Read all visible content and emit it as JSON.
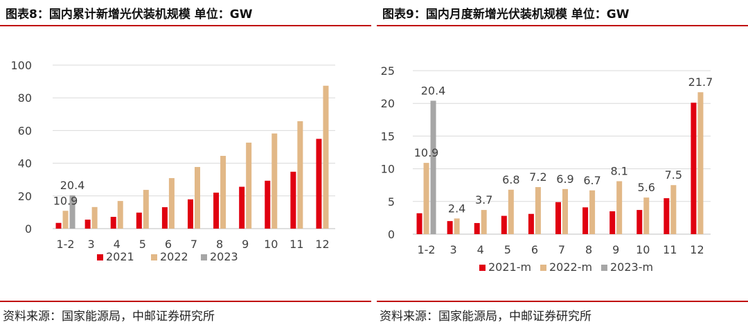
{
  "charts": [
    {
      "heading": "图表8：国内累计新增光伏装机规模 单位：GW",
      "source": "资料来源：国家能源局，中邮证券研究所"
    },
    {
      "heading": "图表9：国内月度新增光伏装机规模 单位：GW",
      "source": "资料来源：国家能源局，中邮证券研究所"
    }
  ],
  "colors": {
    "s2021": "#e00010",
    "s2022": "#e2b887",
    "s2023": "#a6a6a6",
    "grid": "#d9d9d9",
    "axis": "#bfbfbf",
    "text": "#404040"
  },
  "chart_data": [
    {
      "type": "bar",
      "title": "国内累计新增光伏装机规模",
      "categories": [
        "1-2",
        "3",
        "4",
        "5",
        "6",
        "7",
        "8",
        "9",
        "10",
        "11",
        "12"
      ],
      "series": [
        {
          "name": "2021",
          "values": [
            3.5,
            5.5,
            7.2,
            9.8,
            13.1,
            17.9,
            22.0,
            25.6,
            29.3,
            34.8,
            54.9
          ]
        },
        {
          "name": "2022",
          "values": [
            10.9,
            13.2,
            16.9,
            23.7,
            30.9,
            37.7,
            44.5,
            52.6,
            58.2,
            65.7,
            87.4
          ]
        },
        {
          "name": "2023",
          "values": [
            20.4,
            null,
            null,
            null,
            null,
            null,
            null,
            null,
            null,
            null,
            null
          ]
        }
      ],
      "data_labels": [
        {
          "series": "2022",
          "category": "1-2",
          "text": "10.9"
        },
        {
          "series": "2023",
          "category": "1-2",
          "text": "20.4"
        }
      ],
      "yticks": [
        0,
        20,
        40,
        60,
        80,
        100
      ],
      "ylim": [
        0,
        100
      ],
      "legend": "bottom-center"
    },
    {
      "type": "bar",
      "title": "国内月度新增光伏装机规模",
      "categories": [
        "1-2",
        "3",
        "4",
        "5",
        "6",
        "7",
        "8",
        "9",
        "10",
        "11",
        "12"
      ],
      "series": [
        {
          "name": "2021-m",
          "values": [
            3.2,
            2.0,
            1.7,
            2.8,
            3.1,
            4.9,
            4.1,
            3.5,
            3.7,
            5.5,
            20.1
          ]
        },
        {
          "name": "2022-m",
          "values": [
            10.9,
            2.4,
            3.7,
            6.8,
            7.2,
            6.9,
            6.7,
            8.1,
            5.6,
            7.5,
            21.7
          ]
        },
        {
          "name": "2023-m",
          "values": [
            20.4,
            null,
            null,
            null,
            null,
            null,
            null,
            null,
            null,
            null,
            null
          ]
        }
      ],
      "data_labels": [
        {
          "series": "2022-m",
          "category": "1-2",
          "text": "10.9"
        },
        {
          "series": "2022-m",
          "category": "3",
          "text": "2.4"
        },
        {
          "series": "2022-m",
          "category": "4",
          "text": "3.7"
        },
        {
          "series": "2022-m",
          "category": "5",
          "text": "6.8"
        },
        {
          "series": "2022-m",
          "category": "6",
          "text": "7.2"
        },
        {
          "series": "2022-m",
          "category": "7",
          "text": "6.9"
        },
        {
          "series": "2022-m",
          "category": "8",
          "text": "6.7"
        },
        {
          "series": "2022-m",
          "category": "9",
          "text": "8.1"
        },
        {
          "series": "2022-m",
          "category": "10",
          "text": "5.6"
        },
        {
          "series": "2022-m",
          "category": "11",
          "text": "7.5"
        },
        {
          "series": "2022-m",
          "category": "12",
          "text": "21.7"
        },
        {
          "series": "2023-m",
          "category": "1-2",
          "text": "20.4"
        }
      ],
      "yticks": [
        0,
        5,
        10,
        15,
        20,
        25
      ],
      "ylim": [
        0,
        25
      ],
      "legend": "bottom-center"
    }
  ]
}
